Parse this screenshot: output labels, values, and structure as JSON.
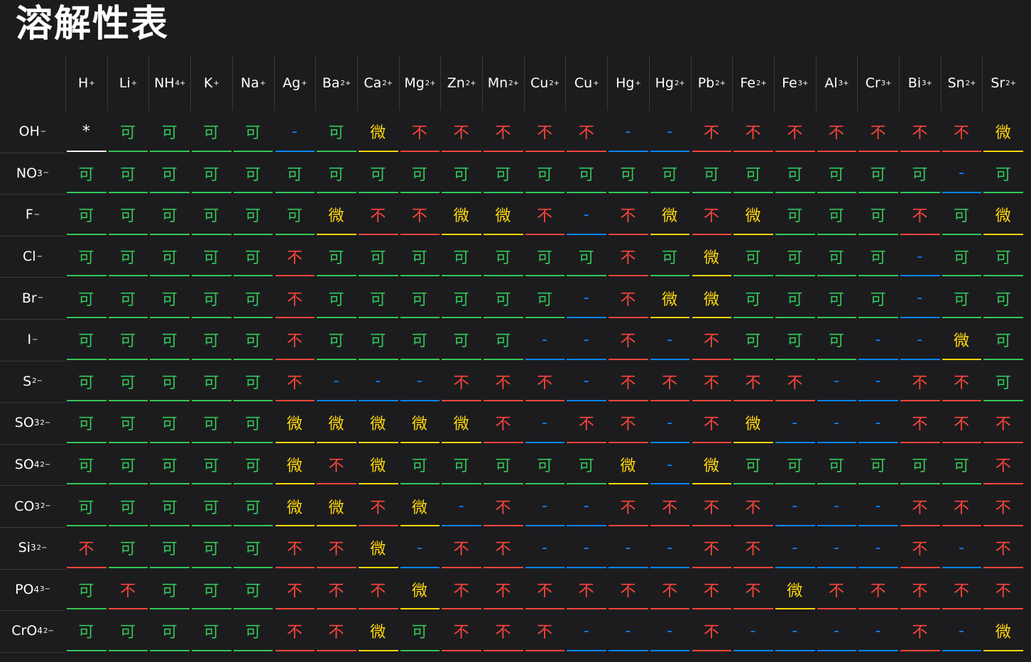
{
  "title": "溶解性表",
  "colors": {
    "可": "#34c759",
    "不": "#ff453a",
    "微": "#ffd60a",
    "-": "#0a84ff",
    "*": "#ffffff"
  },
  "cations": [
    {
      "base": "H",
      "sup": "+"
    },
    {
      "base": "Li",
      "sup": "+"
    },
    {
      "base": "NH",
      "sup": "4+"
    },
    {
      "base": "K",
      "sup": "+"
    },
    {
      "base": "Na",
      "sup": "+"
    },
    {
      "base": "Ag",
      "sup": "+"
    },
    {
      "base": "Ba",
      "sup": "2+"
    },
    {
      "base": "Ca",
      "sup": "2+"
    },
    {
      "base": "Mg",
      "sup": "2+"
    },
    {
      "base": "Zn",
      "sup": "2+"
    },
    {
      "base": "Mn",
      "sup": "2+"
    },
    {
      "base": "Cu",
      "sup": "2+"
    },
    {
      "base": "Cu",
      "sup": "+"
    },
    {
      "base": "Hg",
      "sup": "+"
    },
    {
      "base": "Hg",
      "sup": "2+"
    },
    {
      "base": "Pb",
      "sup": "2+"
    },
    {
      "base": "Fe",
      "sup": "2+"
    },
    {
      "base": "Fe",
      "sup": "3+"
    },
    {
      "base": "Al",
      "sup": "3+"
    },
    {
      "base": "Cr",
      "sup": "3+"
    },
    {
      "base": "Bi",
      "sup": "3+"
    },
    {
      "base": "Sn",
      "sup": "2+"
    },
    {
      "base": "Sr",
      "sup": "2+"
    }
  ],
  "anions": [
    {
      "base": "OH",
      "sub": "",
      "sup": "−"
    },
    {
      "base": "NO",
      "sub": "3",
      "sup": "−"
    },
    {
      "base": "F",
      "sub": "",
      "sup": "−"
    },
    {
      "base": "Cl",
      "sub": "",
      "sup": "−"
    },
    {
      "base": "Br",
      "sub": "",
      "sup": "−"
    },
    {
      "base": "I",
      "sub": "",
      "sup": "−"
    },
    {
      "base": "S",
      "sub": "",
      "sup": "2−"
    },
    {
      "base": "SO",
      "sub": "3",
      "sup": "2−"
    },
    {
      "base": "SO",
      "sub": "4",
      "sup": "2−"
    },
    {
      "base": "CO",
      "sub": "3",
      "sup": "2−"
    },
    {
      "base": "Si",
      "sub": "3",
      "sup": "2−"
    },
    {
      "base": "PO",
      "sub": "4",
      "sup": "3−"
    },
    {
      "base": "CrO",
      "sub": "4",
      "sup": "2−"
    }
  ],
  "table": [
    [
      "*",
      "可",
      "可",
      "可",
      "可",
      "-",
      "可",
      "微",
      "不",
      "不",
      "不",
      "不",
      "不",
      "-",
      "-",
      "不",
      "不",
      "不",
      "不",
      "不",
      "不",
      "不",
      "微"
    ],
    [
      "可",
      "可",
      "可",
      "可",
      "可",
      "可",
      "可",
      "可",
      "可",
      "可",
      "可",
      "可",
      "可",
      "可",
      "可",
      "可",
      "可",
      "可",
      "可",
      "可",
      "可",
      "-",
      "可"
    ],
    [
      "可",
      "可",
      "可",
      "可",
      "可",
      "可",
      "微",
      "不",
      "不",
      "微",
      "微",
      "不",
      "-",
      "不",
      "微",
      "不",
      "微",
      "可",
      "可",
      "可",
      "不",
      "可",
      "微"
    ],
    [
      "可",
      "可",
      "可",
      "可",
      "可",
      "不",
      "可",
      "可",
      "可",
      "可",
      "可",
      "可",
      "可",
      "不",
      "可",
      "微",
      "可",
      "可",
      "可",
      "可",
      "-",
      "可",
      "可"
    ],
    [
      "可",
      "可",
      "可",
      "可",
      "可",
      "不",
      "可",
      "可",
      "可",
      "可",
      "可",
      "可",
      "-",
      "不",
      "微",
      "微",
      "可",
      "可",
      "可",
      "可",
      "-",
      "可",
      "可"
    ],
    [
      "可",
      "可",
      "可",
      "可",
      "可",
      "不",
      "可",
      "可",
      "可",
      "可",
      "可",
      "-",
      "-",
      "不",
      "-",
      "不",
      "可",
      "可",
      "可",
      "-",
      "-",
      "微",
      "可"
    ],
    [
      "可",
      "可",
      "可",
      "可",
      "可",
      "不",
      "-",
      "-",
      "-",
      "不",
      "不",
      "不",
      "-",
      "不",
      "不",
      "不",
      "不",
      "不",
      "-",
      "-",
      "不",
      "不",
      "可"
    ],
    [
      "可",
      "可",
      "可",
      "可",
      "可",
      "微",
      "微",
      "微",
      "微",
      "微",
      "不",
      "-",
      "不",
      "不",
      "-",
      "不",
      "微",
      "-",
      "-",
      "-",
      "不",
      "不",
      "不"
    ],
    [
      "可",
      "可",
      "可",
      "可",
      "可",
      "微",
      "不",
      "微",
      "可",
      "可",
      "可",
      "可",
      "可",
      "微",
      "-",
      "微",
      "可",
      "可",
      "可",
      "可",
      "可",
      "可",
      "不"
    ],
    [
      "可",
      "可",
      "可",
      "可",
      "可",
      "微",
      "微",
      "不",
      "微",
      "-",
      "不",
      "-",
      "-",
      "不",
      "不",
      "不",
      "不",
      "-",
      "-",
      "-",
      "不",
      "不",
      "不"
    ],
    [
      "不",
      "可",
      "可",
      "可",
      "可",
      "不",
      "不",
      "微",
      "-",
      "不",
      "不",
      "-",
      "-",
      "-",
      "-",
      "不",
      "不",
      "-",
      "-",
      "-",
      "不",
      "-",
      "不"
    ],
    [
      "可",
      "不",
      "可",
      "可",
      "可",
      "不",
      "不",
      "不",
      "微",
      "不",
      "不",
      "不",
      "不",
      "不",
      "不",
      "不",
      "不",
      "微",
      "不",
      "不",
      "不",
      "不",
      "不"
    ],
    [
      "可",
      "可",
      "可",
      "可",
      "可",
      "不",
      "不",
      "微",
      "可",
      "不",
      "不",
      "不",
      "-",
      "-",
      "-",
      "不",
      "-",
      "-",
      "-",
      "-",
      "不",
      "-",
      "微"
    ]
  ]
}
